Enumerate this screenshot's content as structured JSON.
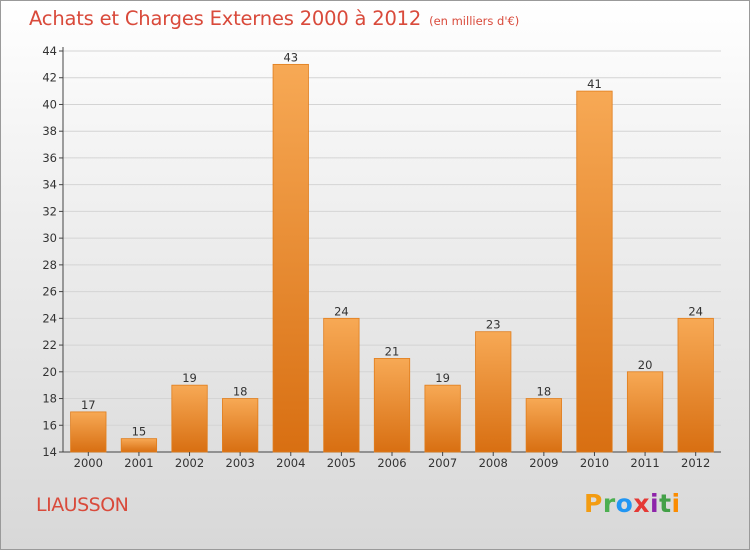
{
  "chart_data": {
    "type": "bar",
    "title": "Achats et Charges Externes 2000 à 2012",
    "subtitle": "(en milliers d'€)",
    "categories": [
      "2000",
      "2001",
      "2002",
      "2003",
      "2004",
      "2005",
      "2006",
      "2007",
      "2008",
      "2009",
      "2010",
      "2011",
      "2012"
    ],
    "values": [
      17,
      15,
      19,
      18,
      43,
      24,
      21,
      19,
      23,
      18,
      41,
      20,
      24
    ],
    "value_labels": [
      "17",
      "15",
      "19",
      "18",
      "43",
      "24",
      "21",
      "19",
      "23",
      "18",
      "41",
      "20",
      "24"
    ],
    "ylim": [
      14,
      44
    ],
    "yticks": [
      "14",
      "16",
      "18",
      "20",
      "22",
      "24",
      "26",
      "28",
      "30",
      "32",
      "34",
      "36",
      "38",
      "40",
      "42",
      "44"
    ],
    "grid": true,
    "xlabel": "",
    "ylabel": "",
    "bar_color": "#f08a24",
    "bar_color_light": "#f7a955",
    "bar_color_dark": "#d86f12",
    "grid_color": "#d4d4d4",
    "title_color": "#d94a3b"
  },
  "commune": "LIAUSSON",
  "logo": {
    "letters": [
      "P",
      "r",
      "o",
      "x",
      "i",
      "t",
      "i"
    ]
  }
}
